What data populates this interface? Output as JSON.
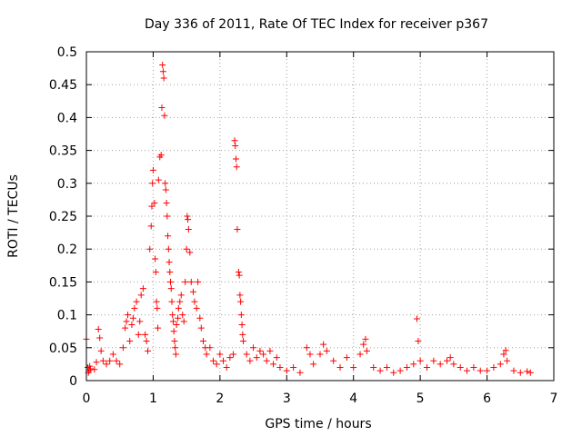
{
  "chart_data": {
    "type": "scatter",
    "title": "Day 336 of 2011, Rate Of TEC Index for receiver p367",
    "xlabel": "GPS time / hours",
    "ylabel": "ROTI / TECUs",
    "xlim": [
      0,
      7
    ],
    "ylim": [
      0,
      0.5
    ],
    "xticks": [
      "0",
      "1",
      "2",
      "3",
      "4",
      "5",
      "6",
      "7"
    ],
    "yticks": [
      "0",
      "0.05",
      "0.1",
      "0.15",
      "0.2",
      "0.25",
      "0.3",
      "0.35",
      "0.4",
      "0.45",
      "0.5"
    ],
    "grid": true,
    "marker": "+",
    "color": "#ff0000",
    "series": [
      {
        "name": "ROTI",
        "points": [
          [
            0.0,
            0.063
          ],
          [
            0.02,
            0.02
          ],
          [
            0.03,
            0.012
          ],
          [
            0.04,
            0.015
          ],
          [
            0.05,
            0.022
          ],
          [
            0.06,
            0.018
          ],
          [
            0.12,
            0.017
          ],
          [
            0.15,
            0.028
          ],
          [
            0.18,
            0.078
          ],
          [
            0.2,
            0.065
          ],
          [
            0.22,
            0.045
          ],
          [
            0.25,
            0.03
          ],
          [
            0.3,
            0.025
          ],
          [
            0.35,
            0.03
          ],
          [
            0.4,
            0.04
          ],
          [
            0.45,
            0.03
          ],
          [
            0.5,
            0.025
          ],
          [
            0.55,
            0.05
          ],
          [
            0.58,
            0.08
          ],
          [
            0.6,
            0.09
          ],
          [
            0.62,
            0.1
          ],
          [
            0.65,
            0.06
          ],
          [
            0.68,
            0.085
          ],
          [
            0.7,
            0.095
          ],
          [
            0.72,
            0.11
          ],
          [
            0.75,
            0.12
          ],
          [
            0.78,
            0.07
          ],
          [
            0.8,
            0.09
          ],
          [
            0.82,
            0.13
          ],
          [
            0.85,
            0.14
          ],
          [
            0.88,
            0.07
          ],
          [
            0.9,
            0.06
          ],
          [
            0.92,
            0.045
          ],
          [
            0.95,
            0.2
          ],
          [
            0.97,
            0.235
          ],
          [
            0.98,
            0.265
          ],
          [
            0.99,
            0.3
          ],
          [
            1.0,
            0.32
          ],
          [
            1.02,
            0.27
          ],
          [
            1.03,
            0.185
          ],
          [
            1.04,
            0.165
          ],
          [
            1.05,
            0.12
          ],
          [
            1.06,
            0.11
          ],
          [
            1.07,
            0.08
          ],
          [
            1.08,
            0.305
          ],
          [
            1.1,
            0.34
          ],
          [
            1.12,
            0.343
          ],
          [
            1.13,
            0.415
          ],
          [
            1.14,
            0.48
          ],
          [
            1.15,
            0.47
          ],
          [
            1.16,
            0.46
          ],
          [
            1.17,
            0.403
          ],
          [
            1.18,
            0.3
          ],
          [
            1.19,
            0.29
          ],
          [
            1.2,
            0.27
          ],
          [
            1.21,
            0.25
          ],
          [
            1.22,
            0.22
          ],
          [
            1.23,
            0.2
          ],
          [
            1.24,
            0.18
          ],
          [
            1.25,
            0.165
          ],
          [
            1.26,
            0.15
          ],
          [
            1.27,
            0.14
          ],
          [
            1.28,
            0.12
          ],
          [
            1.29,
            0.1
          ],
          [
            1.3,
            0.09
          ],
          [
            1.31,
            0.075
          ],
          [
            1.32,
            0.06
          ],
          [
            1.33,
            0.05
          ],
          [
            1.34,
            0.04
          ],
          [
            1.35,
            0.085
          ],
          [
            1.37,
            0.095
          ],
          [
            1.38,
            0.11
          ],
          [
            1.4,
            0.12
          ],
          [
            1.42,
            0.13
          ],
          [
            1.44,
            0.1
          ],
          [
            1.46,
            0.09
          ],
          [
            1.48,
            0.15
          ],
          [
            1.5,
            0.2
          ],
          [
            1.51,
            0.25
          ],
          [
            1.52,
            0.245
          ],
          [
            1.53,
            0.23
          ],
          [
            1.55,
            0.195
          ],
          [
            1.57,
            0.15
          ],
          [
            1.6,
            0.135
          ],
          [
            1.62,
            0.12
          ],
          [
            1.65,
            0.11
          ],
          [
            1.67,
            0.15
          ],
          [
            1.7,
            0.095
          ],
          [
            1.72,
            0.08
          ],
          [
            1.75,
            0.06
          ],
          [
            1.78,
            0.05
          ],
          [
            1.8,
            0.04
          ],
          [
            1.85,
            0.05
          ],
          [
            1.9,
            0.03
          ],
          [
            1.95,
            0.025
          ],
          [
            2.0,
            0.04
          ],
          [
            2.05,
            0.03
          ],
          [
            2.1,
            0.02
          ],
          [
            2.15,
            0.035
          ],
          [
            2.2,
            0.04
          ],
          [
            2.22,
            0.365
          ],
          [
            2.23,
            0.357
          ],
          [
            2.24,
            0.337
          ],
          [
            2.25,
            0.325
          ],
          [
            2.26,
            0.23
          ],
          [
            2.28,
            0.165
          ],
          [
            2.29,
            0.16
          ],
          [
            2.3,
            0.13
          ],
          [
            2.31,
            0.12
          ],
          [
            2.32,
            0.1
          ],
          [
            2.33,
            0.085
          ],
          [
            2.34,
            0.07
          ],
          [
            2.35,
            0.06
          ],
          [
            2.4,
            0.04
          ],
          [
            2.45,
            0.03
          ],
          [
            2.5,
            0.05
          ],
          [
            2.55,
            0.035
          ],
          [
            2.6,
            0.045
          ],
          [
            2.65,
            0.04
          ],
          [
            2.7,
            0.03
          ],
          [
            2.75,
            0.045
          ],
          [
            2.8,
            0.025
          ],
          [
            2.85,
            0.035
          ],
          [
            2.9,
            0.02
          ],
          [
            3.0,
            0.015
          ],
          [
            3.1,
            0.02
          ],
          [
            3.2,
            0.012
          ],
          [
            3.3,
            0.05
          ],
          [
            3.35,
            0.04
          ],
          [
            3.4,
            0.025
          ],
          [
            3.5,
            0.04
          ],
          [
            3.55,
            0.055
          ],
          [
            3.6,
            0.045
          ],
          [
            3.7,
            0.03
          ],
          [
            3.8,
            0.02
          ],
          [
            3.9,
            0.035
          ],
          [
            4.0,
            0.02
          ],
          [
            4.1,
            0.04
          ],
          [
            4.15,
            0.055
          ],
          [
            4.18,
            0.063
          ],
          [
            4.2,
            0.045
          ],
          [
            4.3,
            0.02
          ],
          [
            4.4,
            0.015
          ],
          [
            4.5,
            0.02
          ],
          [
            4.6,
            0.012
          ],
          [
            4.7,
            0.015
          ],
          [
            4.8,
            0.02
          ],
          [
            4.9,
            0.025
          ],
          [
            4.95,
            0.094
          ],
          [
            4.97,
            0.06
          ],
          [
            5.0,
            0.03
          ],
          [
            5.1,
            0.02
          ],
          [
            5.2,
            0.03
          ],
          [
            5.3,
            0.025
          ],
          [
            5.4,
            0.03
          ],
          [
            5.45,
            0.035
          ],
          [
            5.5,
            0.025
          ],
          [
            5.6,
            0.02
          ],
          [
            5.7,
            0.015
          ],
          [
            5.8,
            0.02
          ],
          [
            5.9,
            0.015
          ],
          [
            6.0,
            0.015
          ],
          [
            6.1,
            0.02
          ],
          [
            6.2,
            0.025
          ],
          [
            6.25,
            0.04
          ],
          [
            6.28,
            0.046
          ],
          [
            6.3,
            0.03
          ],
          [
            6.4,
            0.015
          ],
          [
            6.5,
            0.012
          ],
          [
            6.6,
            0.014
          ],
          [
            6.65,
            0.012
          ]
        ]
      }
    ]
  }
}
